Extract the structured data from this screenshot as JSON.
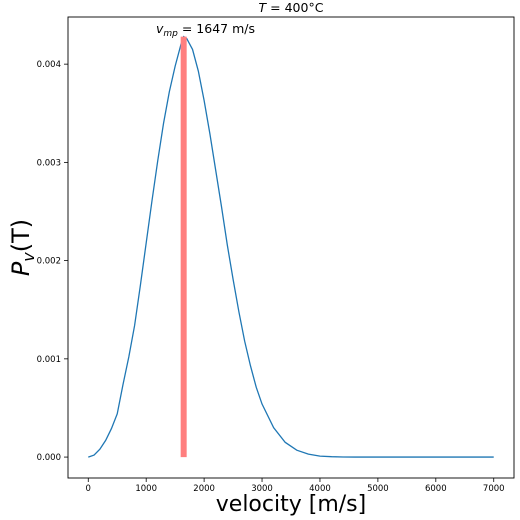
{
  "chart_data": {
    "type": "line",
    "title": "T = 400°C",
    "title_parts": {
      "main": "T",
      "rest": " = 400°C"
    },
    "xlabel": "velocity [m/s]",
    "ylabel": "P_v(T)",
    "ylabel_parts": {
      "main": "P",
      "sub": "v",
      "rest": "(T)"
    },
    "xlim": [
      -350,
      7350
    ],
    "ylim": [
      -0.000213,
      0.00448
    ],
    "x_ticks": [
      0,
      1000,
      2000,
      3000,
      4000,
      5000,
      6000,
      7000
    ],
    "x_tick_labels": [
      "0",
      "1000",
      "2000",
      "3000",
      "4000",
      "5000",
      "6000",
      "7000"
    ],
    "y_ticks": [
      0.0,
      0.001,
      0.002,
      0.003,
      0.004
    ],
    "y_tick_labels": [
      "0.000",
      "0.001",
      "0.002",
      "0.003",
      "0.004"
    ],
    "grid": false,
    "series": [
      {
        "line_color": "#1f77b4",
        "x": [
          0,
          100,
          200,
          300,
          400,
          500,
          600,
          700,
          800,
          900,
          1000,
          1100,
          1200,
          1300,
          1400,
          1500,
          1600,
          1647,
          1700,
          1800,
          1900,
          2000,
          2100,
          2200,
          2300,
          2400,
          2500,
          2600,
          2700,
          2800,
          2900,
          3000,
          3200,
          3400,
          3600,
          3800,
          4000,
          4200,
          4400,
          4600,
          4800,
          5000,
          5500,
          6000,
          6500,
          7000
        ],
        "y": [
          0.0,
          2e-05,
          8e-05,
          0.00017,
          0.00029,
          0.00044,
          0.00074,
          0.00102,
          0.00134,
          0.00175,
          0.00218,
          0.00261,
          0.00302,
          0.0034,
          0.00372,
          0.00398,
          0.0042,
          0.00428,
          0.00426,
          0.00415,
          0.00393,
          0.00363,
          0.00329,
          0.00292,
          0.00255,
          0.00216,
          0.00181,
          0.00148,
          0.00118,
          0.00093,
          0.00071,
          0.00054,
          0.0003,
          0.00015,
          7e-05,
          3e-05,
          1e-05,
          4e-06,
          1e-06,
          0.0,
          0.0,
          0.0,
          0.0,
          0.0,
          0.0,
          0.0
        ]
      }
    ],
    "annotation": {
      "text_parts": {
        "main": "v",
        "sub": "mp",
        "rest": " = 1647 m/s"
      },
      "x": 1647,
      "y_top": 0.00428,
      "color": "#ff7f7f"
    }
  }
}
